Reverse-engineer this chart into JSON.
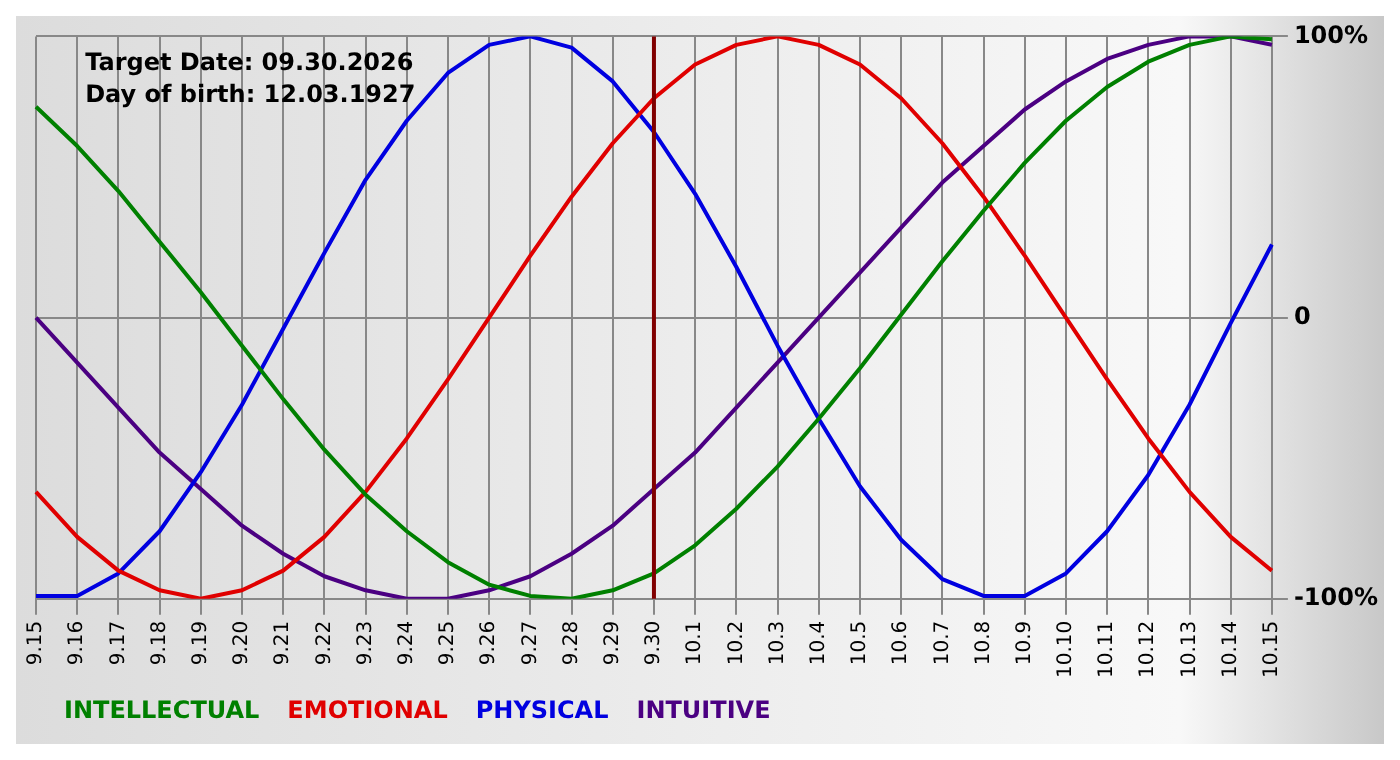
{
  "chart_data": {
    "type": "line",
    "categories": [
      "9.15",
      "9.16",
      "9.17",
      "9.18",
      "9.19",
      "9.20",
      "9.21",
      "9.22",
      "9.23",
      "9.24",
      "9.25",
      "9.26",
      "9.27",
      "9.28",
      "9.29",
      "9.30",
      "10.1",
      "10.2",
      "10.3",
      "10.4",
      "10.5",
      "10.6",
      "10.7",
      "10.8",
      "10.9",
      "10.10",
      "10.11",
      "10.12",
      "10.13",
      "10.14",
      "10.15"
    ],
    "series": [
      {
        "name": "INTELLECTUAL",
        "color": "#008000",
        "values": [
          75,
          61,
          45,
          27,
          9,
          -10,
          -29,
          -47,
          -63,
          -76,
          -87,
          -95,
          -99,
          -100,
          -97,
          -91,
          -81,
          -68,
          -53,
          -36,
          -18,
          1,
          20,
          38,
          55,
          70,
          82,
          91,
          97,
          100,
          99
        ]
      },
      {
        "name": "EMOTIONAL",
        "color": "#e00000",
        "values": [
          -62,
          -78,
          -90,
          -97,
          -100,
          -97,
          -90,
          -78,
          -62,
          -43,
          -22,
          0,
          22,
          43,
          62,
          78,
          90,
          97,
          100,
          97,
          90,
          78,
          62,
          43,
          22,
          0,
          -22,
          -43,
          -62,
          -78,
          -90
        ]
      },
      {
        "name": "PHYSICAL",
        "color": "#0000e0",
        "values": [
          -99,
          -99,
          -91,
          -76,
          -55,
          -31,
          -4,
          23,
          49,
          70,
          87,
          97,
          100,
          96,
          84,
          66,
          44,
          18,
          -10,
          -36,
          -60,
          -79,
          -93,
          -99,
          -99,
          -91,
          -76,
          -56,
          -31,
          -2,
          26
        ]
      },
      {
        "name": "INTUITIVE",
        "color": "#4b0082",
        "values": [
          0,
          -16,
          -32,
          -48,
          -61,
          -74,
          -84,
          -92,
          -97,
          -100,
          -100,
          -97,
          -92,
          -84,
          -74,
          -61,
          -48,
          -32,
          -16,
          0,
          16,
          32,
          48,
          61,
          74,
          84,
          92,
          97,
          100,
          100,
          97
        ]
      }
    ],
    "ylim": [
      -100,
      100
    ],
    "yticks": [
      {
        "value": -100,
        "label": "-100%"
      },
      0,
      {
        "value": 100,
        "label": "100%"
      }
    ],
    "grid": true,
    "legend": "bottom left",
    "marker": "none",
    "line_style": "solid",
    "ref_lines": [
      {
        "axis": "x",
        "value": "9.30",
        "color": "#800000"
      }
    ],
    "annotations": [
      "Target Date: 09.30.2026",
      "Day of birth: 12.03.1927"
    ]
  }
}
